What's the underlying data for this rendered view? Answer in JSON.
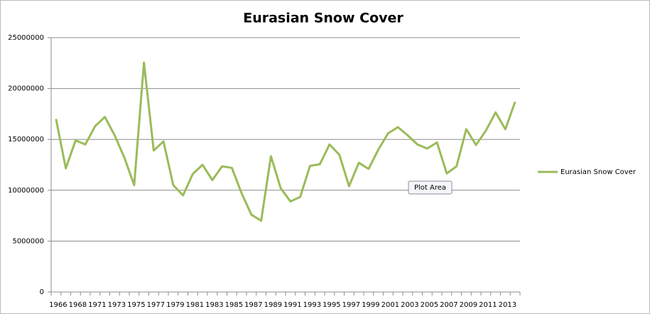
{
  "chart_data": {
    "type": "line",
    "title": "Eurasian Snow Cover",
    "categories": [
      "1966",
      null,
      "1968",
      null,
      "1971",
      null,
      "1973",
      null,
      "1975",
      null,
      "1977",
      null,
      "1979",
      null,
      "1981",
      null,
      "1983",
      null,
      "1985",
      null,
      "1987",
      null,
      "1989",
      null,
      "1991",
      null,
      "1993",
      null,
      "1995",
      null,
      "1997",
      null,
      "1999",
      null,
      "2001",
      null,
      "2003",
      null,
      "2005",
      null,
      "2007",
      null,
      "2009",
      null,
      "2011",
      null,
      "2013",
      null
    ],
    "series": [
      {
        "name": "Eurasian Snow Cover",
        "color": "#9bbb59",
        "values": [
          17000000,
          12150000,
          14900000,
          14500000,
          16300000,
          17200000,
          15400000,
          13200000,
          10500000,
          22550000,
          13900000,
          14800000,
          10500000,
          9500000,
          11600000,
          12500000,
          11000000,
          12350000,
          12200000,
          9700000,
          7600000,
          7000000,
          13350000,
          10200000,
          8900000,
          9350000,
          12400000,
          12550000,
          14500000,
          13500000,
          10400000,
          12700000,
          12100000,
          14000000,
          15600000,
          16200000,
          15400000,
          14500000,
          14100000,
          14700000,
          11650000,
          12350000,
          16000000,
          14450000,
          15850000,
          17650000,
          16000000,
          18700000
        ]
      }
    ],
    "ylim": [
      0,
      25000000
    ],
    "yticks": [
      0,
      5000000,
      10000000,
      15000000,
      20000000,
      25000000
    ],
    "grid": true,
    "legend": "right",
    "tooltip": "Plot Area"
  }
}
